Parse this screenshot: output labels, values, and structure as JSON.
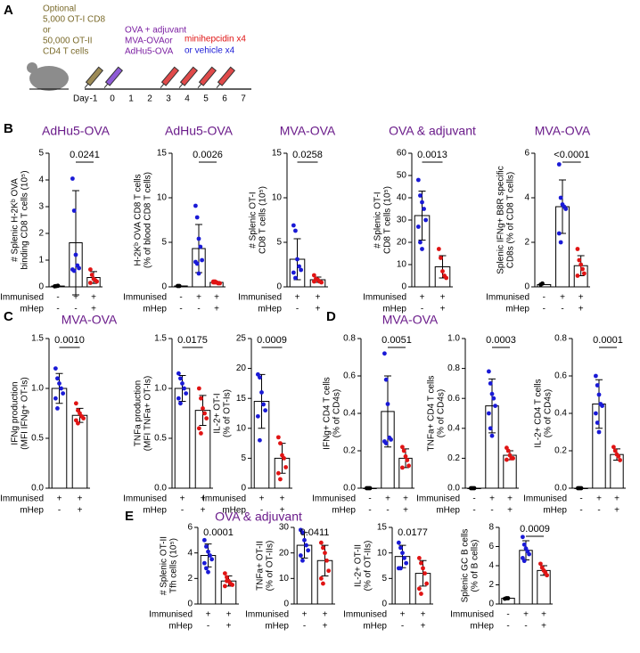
{
  "panel_labels": [
    "A",
    "B",
    "C",
    "D",
    "E"
  ],
  "diagram": {
    "cells_text": [
      "Optional",
      "5,000 OT-I CD8",
      "or",
      "50,000 OT-II",
      "CD4 T cells"
    ],
    "immunisation_text": [
      "OVA + adjuvant",
      "MVA-OVAor",
      "AdHu5-OVA"
    ],
    "treatment_text": [
      "minihepcidin x4",
      "or vehicle x4"
    ],
    "day_label": "Day",
    "days": [
      -1,
      0,
      1,
      2,
      3,
      4,
      5,
      6,
      7
    ]
  },
  "row_labels": [
    "Immunised",
    "mHep"
  ],
  "section_titles": {
    "C": "MVA-OVA",
    "D": "MVA-OVA",
    "E": "OVA & adjuvant"
  },
  "chart_data": [
    {
      "type": "bar",
      "title": "AdHu5-OVA",
      "ylabel": [
        "# Splenic H-2Kᵇ OVA",
        "binding CD8 T cells (10⁵)"
      ],
      "ylim": [
        0,
        5
      ],
      "yticks": [
        0,
        1,
        2,
        3,
        4,
        5
      ],
      "p": "0.0241",
      "bracket": true,
      "groups": [
        {
          "immunised": "-",
          "mhep": "-",
          "color": "#000000",
          "mean": 0.03,
          "points": [
            0.02,
            0.03,
            0.04
          ]
        },
        {
          "immunised": "+",
          "mhep": "-",
          "color": "#1a1ad6",
          "mean": 1.65,
          "error": 1.95,
          "points": [
            4.05,
            2.85,
            1.2,
            0.8,
            0.7,
            0.65,
            0.6
          ]
        },
        {
          "immunised": "+",
          "mhep": "+",
          "color": "#e01414",
          "mean": 0.35,
          "error": 0.22,
          "points": [
            0.65,
            0.45,
            0.3,
            0.25,
            0.2,
            0.15
          ]
        }
      ]
    },
    {
      "type": "bar",
      "title": "AdHu5-OVA",
      "ylabel": [
        "H-2Kᵇ OVA CD8 T cells",
        "(% of blood CD8 T cells)"
      ],
      "ylim": [
        0,
        15
      ],
      "yticks": [
        0,
        5,
        10,
        15
      ],
      "p": "0.0026",
      "bracket": true,
      "groups": [
        {
          "immunised": "-",
          "mhep": "-",
          "color": "#000000",
          "mean": 0.1,
          "points": [
            0.1,
            0.1
          ]
        },
        {
          "immunised": "+",
          "mhep": "-",
          "color": "#1a1ad6",
          "mean": 4.3,
          "error": 2.7,
          "points": [
            9.1,
            7.8,
            5.4,
            4.5,
            3.0,
            2.8,
            2.6,
            1.5
          ]
        },
        {
          "immunised": "+",
          "mhep": "+",
          "color": "#e01414",
          "mean": 0.5,
          "error": 0.1,
          "points": [
            0.6,
            0.5,
            0.5,
            0.4,
            0.4,
            0.5,
            0.6
          ]
        }
      ]
    },
    {
      "type": "bar",
      "title": "MVA-OVA",
      "ylabel": [
        "# Splenic OT-I",
        "CD8 T cells (10⁵)"
      ],
      "ylim": [
        0,
        15
      ],
      "yticks": [
        0,
        5,
        10,
        15
      ],
      "p": "0.0258",
      "bracket": true,
      "groups": [
        {
          "immunised": "+",
          "mhep": "-",
          "color": "#1a1ad6",
          "mean": 3.1,
          "error": 2.3,
          "points": [
            6.9,
            6.3,
            3.1,
            2.3,
            1.9,
            1.6,
            1.0
          ]
        },
        {
          "immunised": "+",
          "mhep": "+",
          "color": "#e01414",
          "mean": 0.8,
          "error": 0.3,
          "points": [
            1.3,
            0.9,
            0.8,
            0.6,
            0.5,
            0.6
          ]
        }
      ]
    },
    {
      "type": "bar",
      "title": "OVA & adjuvant",
      "ylabel": [
        "# Splenic OT-I",
        "CD8 T cells (10⁵)"
      ],
      "ylim": [
        0,
        60
      ],
      "yticks": [
        0,
        10,
        20,
        30,
        40,
        50,
        60
      ],
      "p": "0.0013",
      "bracket": true,
      "groups": [
        {
          "immunised": "+",
          "mhep": "-",
          "color": "#1a1ad6",
          "mean": 32,
          "error": 11,
          "points": [
            48,
            41,
            38,
            35,
            30,
            27,
            20,
            17
          ]
        },
        {
          "immunised": "+",
          "mhep": "+",
          "color": "#e01414",
          "mean": 9,
          "error": 5,
          "points": [
            17,
            13,
            7,
            5,
            4
          ]
        }
      ]
    },
    {
      "type": "bar",
      "title": "MVA-OVA",
      "ylabel": [
        "Splenic IFNg+ B8R specific",
        "CD8s (% of CD8 T cells)"
      ],
      "ylim": [
        0,
        6
      ],
      "yticks": [
        0,
        2,
        4,
        6
      ],
      "p": "<0.0001",
      "bracket": true,
      "groups": [
        {
          "immunised": "-",
          "mhep": "-",
          "color": "#000000",
          "mean": 0.1,
          "points": [
            0.1,
            0.15
          ]
        },
        {
          "immunised": "+",
          "mhep": "-",
          "color": "#1a1ad6",
          "mean": 3.6,
          "error": 1.2,
          "points": [
            5.5,
            4.0,
            3.7,
            3.6,
            3.5,
            2.4,
            2.0
          ]
        },
        {
          "immunised": "+",
          "mhep": "+",
          "color": "#e01414",
          "mean": 0.95,
          "error": 0.45,
          "points": [
            1.7,
            1.2,
            1.0,
            0.8,
            0.6,
            0.5
          ]
        }
      ]
    },
    {
      "type": "bar",
      "ylabel": [
        "IFNg production",
        "(MFI IFNg+ OT-Is)"
      ],
      "ylim": [
        0,
        1.5
      ],
      "yticks": [
        {
          "value": 0,
          "label": "0.0"
        },
        0.5,
        {
          "value": 1,
          "label": "1.0"
        },
        1.5
      ],
      "p": "0.0010",
      "bracket": true,
      "groups": [
        {
          "immunised": "+",
          "mhep": "-",
          "color": "#1a1ad6",
          "mean": 1.0,
          "error": 0.15,
          "points": [
            1.2,
            1.1,
            1.05,
            1.0,
            0.95,
            0.9,
            0.8
          ]
        },
        {
          "immunised": "+",
          "mhep": "+",
          "color": "#e01414",
          "mean": 0.73,
          "error": 0.07,
          "points": [
            0.85,
            0.78,
            0.75,
            0.72,
            0.7,
            0.68,
            0.65
          ]
        }
      ]
    },
    {
      "type": "bar",
      "ylabel": [
        "TNFa production",
        "(MFI TNFa+ OT-Is)"
      ],
      "ylim": [
        0,
        1.5
      ],
      "yticks": [
        {
          "value": 0,
          "label": "0.0"
        },
        0.5,
        {
          "value": 1,
          "label": "1.0"
        },
        1.5
      ],
      "p": "0.0175",
      "bracket": true,
      "groups": [
        {
          "immunised": "+",
          "mhep": "-",
          "color": "#1a1ad6",
          "mean": 1.0,
          "error": 0.13,
          "points": [
            1.15,
            1.1,
            1.05,
            1.0,
            0.95,
            0.9,
            0.85
          ]
        },
        {
          "immunised": "+",
          "mhep": "+",
          "color": "#e01414",
          "mean": 0.78,
          "error": 0.15,
          "points": [
            1.0,
            0.9,
            0.8,
            0.75,
            0.7,
            0.6,
            0.55
          ]
        }
      ]
    },
    {
      "type": "bar",
      "ylabel": [
        "IL-2+ OT-I",
        "(% of OT-Is)"
      ],
      "ylim": [
        0,
        25
      ],
      "yticks": [
        0,
        5,
        10,
        15,
        20,
        25
      ],
      "p": "0.0009",
      "bracket": true,
      "groups": [
        {
          "immunised": "+",
          "mhep": "-",
          "color": "#1a1ad6",
          "mean": 14.5,
          "error": 4.5,
          "points": [
            19,
            18.5,
            16,
            14,
            13,
            12,
            8
          ]
        },
        {
          "immunised": "+",
          "mhep": "+",
          "color": "#e01414",
          "mean": 5,
          "error": 2.5,
          "points": [
            8.5,
            7.5,
            5.5,
            5,
            3.5,
            2.5,
            1.5
          ]
        }
      ]
    },
    {
      "type": "bar",
      "ylabel": [
        "IFNg+ CD4 T cells",
        "(% of CD4s)"
      ],
      "ylim": [
        0,
        0.8
      ],
      "yticks": [
        {
          "value": 0,
          "label": "0.0"
        },
        0.2,
        0.4,
        0.6,
        0.8
      ],
      "p": "0.0051",
      "bracket": true,
      "groups": [
        {
          "immunised": "-",
          "mhep": "-",
          "color": "#000000",
          "mean": 0,
          "points": [
            0,
            0,
            0
          ]
        },
        {
          "immunised": "+",
          "mhep": "-",
          "color": "#1a1ad6",
          "mean": 0.41,
          "error": 0.19,
          "points": [
            0.72,
            0.58,
            0.45,
            0.27,
            0.26,
            0.25,
            0.24
          ]
        },
        {
          "immunised": "+",
          "mhep": "+",
          "color": "#e01414",
          "mean": 0.16,
          "error": 0.05,
          "points": [
            0.22,
            0.2,
            0.17,
            0.15,
            0.12,
            0.11
          ]
        }
      ]
    },
    {
      "type": "bar",
      "ylabel": [
        "TNFa+ CD4 T cells",
        "(% of CD4s)"
      ],
      "ylim": [
        0,
        1
      ],
      "yticks": [
        {
          "value": 0,
          "label": "0.0"
        },
        0.2,
        0.4,
        0.6,
        0.8,
        {
          "value": 1,
          "label": "1.0"
        }
      ],
      "p": "0.0003",
      "bracket": true,
      "groups": [
        {
          "immunised": "-",
          "mhep": "-",
          "color": "#000000",
          "mean": 0,
          "points": [
            0,
            0,
            0
          ]
        },
        {
          "immunised": "+",
          "mhep": "-",
          "color": "#1a1ad6",
          "mean": 0.55,
          "error": 0.18,
          "points": [
            0.78,
            0.7,
            0.63,
            0.6,
            0.55,
            0.5,
            0.4,
            0.35
          ]
        },
        {
          "immunised": "+",
          "mhep": "+",
          "color": "#e01414",
          "mean": 0.22,
          "error": 0.03,
          "points": [
            0.27,
            0.25,
            0.22,
            0.2,
            0.2,
            0.19
          ]
        }
      ]
    },
    {
      "type": "bar",
      "ylabel": [
        "IL-2+ CD4 T cells",
        "(% of CD4s)"
      ],
      "ylim": [
        0,
        0.8
      ],
      "yticks": [
        {
          "value": 0,
          "label": "0.0"
        },
        0.2,
        0.4,
        0.6,
        0.8
      ],
      "p": "0.0001",
      "bracket": true,
      "groups": [
        {
          "immunised": "-",
          "mhep": "-",
          "color": "#000000",
          "mean": 0,
          "points": [
            0,
            0,
            0
          ]
        },
        {
          "immunised": "+",
          "mhep": "-",
          "color": "#1a1ad6",
          "mean": 0.45,
          "error": 0.13,
          "points": [
            0.6,
            0.55,
            0.5,
            0.45,
            0.44,
            0.4,
            0.35,
            0.3
          ]
        },
        {
          "immunised": "+",
          "mhep": "+",
          "color": "#e01414",
          "mean": 0.18,
          "error": 0.03,
          "points": [
            0.22,
            0.2,
            0.18,
            0.17,
            0.15
          ]
        }
      ]
    },
    {
      "type": "bar",
      "ylabel": [
        "# Splenic OT-II",
        "Tfh cells (10⁵)"
      ],
      "ylim": [
        0,
        6
      ],
      "yticks": [
        0,
        2,
        4,
        6
      ],
      "p": "0.0001",
      "bracket": false,
      "groups": [
        {
          "immunised": "+",
          "mhep": "-",
          "color": "#1a1ad6",
          "mean": 3.8,
          "error": 0.9,
          "points": [
            5.0,
            4.5,
            4.1,
            3.8,
            3.5,
            3.2,
            2.8,
            2.5
          ]
        },
        {
          "immunised": "+",
          "mhep": "+",
          "color": "#e01414",
          "mean": 1.8,
          "error": 0.4,
          "points": [
            2.4,
            2.1,
            1.8,
            1.6,
            1.5,
            1.4,
            1.8
          ]
        }
      ]
    },
    {
      "type": "bar",
      "ylabel": [
        "TNFa+ OT-II",
        "(% of OT-IIs)"
      ],
      "ylim": [
        0,
        30
      ],
      "yticks": [
        0,
        10,
        20,
        30
      ],
      "p": "0.0411",
      "bracket": false,
      "groups": [
        {
          "immunised": "+",
          "mhep": "-",
          "color": "#1a1ad6",
          "mean": 23,
          "error": 5,
          "points": [
            29,
            28,
            25,
            23,
            21,
            19,
            17
          ]
        },
        {
          "immunised": "+",
          "mhep": "+",
          "color": "#e01414",
          "mean": 17,
          "error": 6,
          "points": [
            24,
            22,
            20,
            17,
            13,
            10,
            8
          ]
        }
      ]
    },
    {
      "type": "bar",
      "ylabel": [
        "IL-2+ OT-II",
        "(% of OT-IIs)"
      ],
      "ylim": [
        0,
        15
      ],
      "yticks": [
        0,
        5,
        10,
        15
      ],
      "p": "0.0177",
      "bracket": false,
      "groups": [
        {
          "immunised": "+",
          "mhep": "-",
          "color": "#1a1ad6",
          "mean": 9.3,
          "error": 2.2,
          "points": [
            12,
            11,
            10,
            9,
            8,
            7,
            7
          ]
        },
        {
          "immunised": "+",
          "mhep": "+",
          "color": "#e01414",
          "mean": 6,
          "error": 2.5,
          "points": [
            9,
            8,
            7,
            6,
            4,
            3,
            2
          ]
        }
      ]
    },
    {
      "type": "bar",
      "ylabel": [
        "Splenic GC B cells",
        "(% of B cells)"
      ],
      "ylim": [
        0,
        8
      ],
      "yticks": [
        0,
        2,
        4,
        6,
        8
      ],
      "p": "0.0009",
      "bracket": true,
      "groups": [
        {
          "immunised": "-",
          "mhep": "-",
          "color": "#000000",
          "mean": 0.6,
          "points": [
            0.55,
            0.6,
            0.6
          ]
        },
        {
          "immunised": "+",
          "mhep": "-",
          "color": "#1a1ad6",
          "mean": 5.6,
          "error": 1.0,
          "points": [
            7.0,
            6.2,
            5.8,
            5.5,
            5.2,
            4.8,
            4.5
          ]
        },
        {
          "immunised": "+",
          "mhep": "+",
          "color": "#e01414",
          "mean": 3.5,
          "error": 0.5,
          "points": [
            4.2,
            3.8,
            3.5,
            3.3,
            3.0
          ]
        }
      ]
    }
  ]
}
